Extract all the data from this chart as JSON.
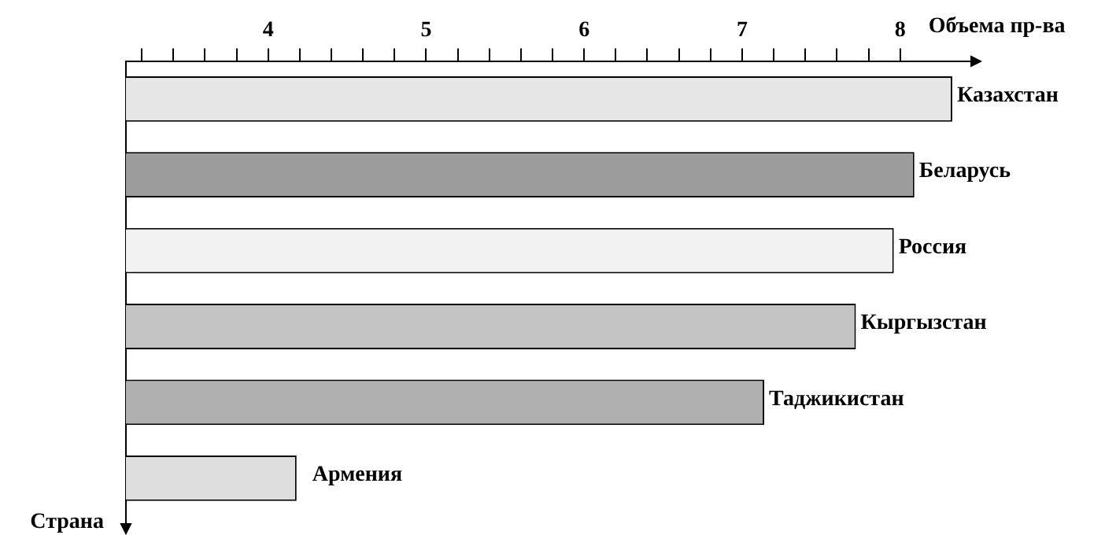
{
  "chart_data": {
    "type": "bar",
    "orientation": "horizontal",
    "xlabel": "Объема пр-ва",
    "ylabel": "Страна",
    "categories": [
      "Казахстан",
      "Беларусь",
      "Россия",
      "Кыргызстан",
      "Таджикистан",
      "Армения"
    ],
    "values": [
      8.33,
      8.09,
      7.96,
      7.72,
      7.14,
      4.18
    ],
    "colors": [
      "#e6e6e6",
      "#9c9c9c",
      "#f2f2f2",
      "#c4c4c4",
      "#b0b0b0",
      "#dedede"
    ],
    "xlim": [
      3.1,
      8.4
    ],
    "xticks": [
      {
        "value": 3.2,
        "label": null
      },
      {
        "value": 3.4,
        "label": null
      },
      {
        "value": 3.6,
        "label": null
      },
      {
        "value": 3.8,
        "label": null
      },
      4,
      {
        "value": 4.2,
        "label": null
      },
      {
        "value": 4.4,
        "label": null
      },
      {
        "value": 4.6,
        "label": null
      },
      {
        "value": 4.8,
        "label": null
      },
      5,
      {
        "value": 5.2,
        "label": null
      },
      {
        "value": 5.4,
        "label": null
      },
      {
        "value": 5.6,
        "label": null
      },
      {
        "value": 5.8,
        "label": null
      },
      6,
      {
        "value": 6.2,
        "label": null
      },
      {
        "value": 6.4,
        "label": null
      },
      {
        "value": 6.6,
        "label": null
      },
      {
        "value": 6.8,
        "label": null
      },
      7,
      {
        "value": 7.2,
        "label": null
      },
      {
        "value": 7.4,
        "label": null
      },
      {
        "value": 7.6,
        "label": null
      },
      {
        "value": 7.8,
        "label": null
      },
      8
    ]
  }
}
